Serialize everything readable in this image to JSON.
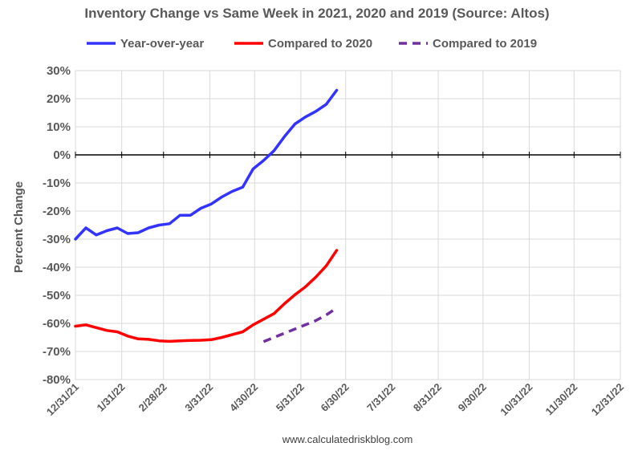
{
  "chart_data": {
    "type": "line",
    "title": "Inventory Change vs Same Week in 2021, 2020 and 2019 (Source: Altos)",
    "ylabel": "Percent Change",
    "xlabel": "",
    "ylim": [
      -80,
      30
    ],
    "y_ticks": [
      30,
      20,
      10,
      0,
      -10,
      -20,
      -30,
      -40,
      -50,
      -60,
      -70,
      -80
    ],
    "y_tick_format": "percent",
    "x_ticks": [
      "12/31/21",
      "1/31/22",
      "2/28/22",
      "3/31/22",
      "4/30/22",
      "5/31/22",
      "6/30/22",
      "7/31/22",
      "8/31/22",
      "9/30/22",
      "10/31/22",
      "11/30/22",
      "12/31/22"
    ],
    "grid": true,
    "legend_position": "top",
    "source_text": "www.calculatedriskblog.com",
    "series": [
      {
        "name": "Year-over-year",
        "color": "#3333ff",
        "dash": false,
        "x": [
          "2021-12-31",
          "2022-01-07",
          "2022-01-14",
          "2022-01-21",
          "2022-01-28",
          "2022-02-04",
          "2022-02-11",
          "2022-02-18",
          "2022-02-25",
          "2022-03-04",
          "2022-03-11",
          "2022-03-18",
          "2022-03-25",
          "2022-04-01",
          "2022-04-08",
          "2022-04-15",
          "2022-04-22",
          "2022-04-29",
          "2022-05-06",
          "2022-05-13",
          "2022-05-20",
          "2022-05-27",
          "2022-06-03",
          "2022-06-10",
          "2022-06-17",
          "2022-06-24"
        ],
        "y": [
          -30,
          -26,
          -28.5,
          -27,
          -26,
          -28,
          -27.7,
          -26,
          -25,
          -24.5,
          -21.5,
          -21.5,
          -19,
          -17.5,
          -15,
          -13,
          -11.5,
          -5,
          -2,
          1.5,
          6.5,
          11,
          13.5,
          15.5,
          18,
          23
        ]
      },
      {
        "name": "Compared to 2020",
        "color": "#ff0000",
        "dash": false,
        "x": [
          "2021-12-31",
          "2022-01-07",
          "2022-01-14",
          "2022-01-21",
          "2022-01-28",
          "2022-02-04",
          "2022-02-11",
          "2022-02-18",
          "2022-02-25",
          "2022-03-04",
          "2022-03-11",
          "2022-03-18",
          "2022-03-25",
          "2022-04-01",
          "2022-04-08",
          "2022-04-15",
          "2022-04-22",
          "2022-04-29",
          "2022-05-06",
          "2022-05-13",
          "2022-05-20",
          "2022-05-27",
          "2022-06-03",
          "2022-06-10",
          "2022-06-17",
          "2022-06-24"
        ],
        "y": [
          -61,
          -60.5,
          -61.5,
          -62.5,
          -63,
          -64.5,
          -65.5,
          -65.7,
          -66.2,
          -66.4,
          -66.2,
          -66.1,
          -66,
          -65.8,
          -65,
          -64,
          -63,
          -60.5,
          -58.5,
          -56.5,
          -53,
          -49.8,
          -47,
          -43.5,
          -39.5,
          -34
        ]
      },
      {
        "name": "Compared to 2019",
        "color": "#7030a0",
        "dash": true,
        "x": [
          "2022-05-06",
          "2022-05-13",
          "2022-05-20",
          "2022-05-27",
          "2022-06-03",
          "2022-06-10",
          "2022-06-17",
          "2022-06-24"
        ],
        "y": [
          -66.5,
          -65,
          -63.5,
          -62,
          -60.5,
          -59,
          -57,
          -54.5
        ]
      }
    ]
  }
}
